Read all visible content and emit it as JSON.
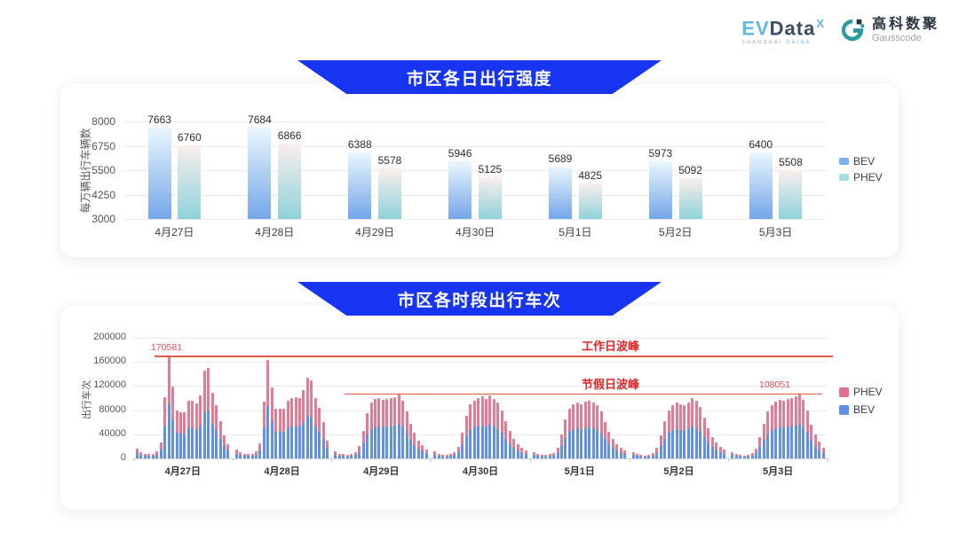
{
  "header": {
    "evdata_ev": "EV",
    "evdata_data": "Data",
    "evdata_sup": "X",
    "evdata_sub_left": "SHANGHAI ",
    "evdata_sub_right": "CHINA",
    "gausscode_cn": "高科数聚",
    "gausscode_en": "Gausscode"
  },
  "colors": {
    "banner_blue": "#1634f2",
    "grid": "#e8eaee",
    "peak_line_red": "#e4574e",
    "peak_text_red": "#e02626",
    "c1_bev_top": "#eaf7fd",
    "c1_bev_bottom": "#74a6e9",
    "c1_phev_top": "#f9efec",
    "c1_phev_bottom": "#8fd2da",
    "c2_bev": "#6290e4",
    "c2_phev": "#e27b94"
  },
  "chart_data": [
    {
      "type": "bar",
      "title": "市区各日出行强度",
      "xlabel": "",
      "ylabel": "每万辆出行车辆数",
      "ylim": [
        3000,
        8000
      ],
      "yticks": [
        8000,
        6750,
        5500,
        4250,
        3000
      ],
      "grid": true,
      "legend_position": "right",
      "categories": [
        "4月27日",
        "4月28日",
        "4月29日",
        "4月30日",
        "5月1日",
        "5月2日",
        "5月3日"
      ],
      "series": [
        {
          "name": "BEV",
          "color_top": "#eaf7fd",
          "color_bottom": "#74a6e9",
          "values": [
            7663,
            7684,
            6388,
            5946,
            5689,
            5973,
            6400
          ]
        },
        {
          "name": "PHEV",
          "color_top": "#f9efec",
          "color_bottom": "#8fd2da",
          "values": [
            6760,
            6866,
            5578,
            5125,
            4825,
            5092,
            5508
          ]
        }
      ],
      "legend": [
        {
          "label": "BEV",
          "color": "#7db2ec"
        },
        {
          "label": "PHEV",
          "color": "#a6dce3"
        }
      ]
    },
    {
      "type": "stacked-bar",
      "title": "市区各时段出行车次",
      "xlabel": "",
      "ylabel": "出行车次",
      "ylim": [
        0,
        200000
      ],
      "yticks": [
        200000,
        160000,
        120000,
        80000,
        40000,
        0
      ],
      "grid": true,
      "legend_position": "right",
      "hours_per_day": 24,
      "categories": [
        "4月27日",
        "4月28日",
        "4月29日",
        "4月30日",
        "5月1日",
        "5月2日",
        "5月3日"
      ],
      "series_colors": {
        "BEV": "#6290e4",
        "PHEV": "#e27b94"
      },
      "days": [
        {
          "date": "4月27日",
          "bev": [
            8500,
            5800,
            4200,
            3700,
            4200,
            6400,
            14300,
            53500,
            91000,
            63100,
            42400,
            40800,
            40300,
            50400,
            50600,
            48000,
            55100,
            77400,
            79800,
            57800,
            46600,
            32900,
            20100,
            12700
          ],
          "phev": [
            7500,
            5200,
            3800,
            3300,
            3800,
            5600,
            12700,
            47500,
            79581,
            55900,
            37600,
            36200,
            35700,
            44600,
            44900,
            42500,
            48900,
            68600,
            70700,
            51200,
            41400,
            29100,
            17900,
            11300
          ]
        },
        {
          "date": "4月28日",
          "bev": [
            8000,
            5300,
            4200,
            3700,
            4200,
            6400,
            13300,
            49800,
            86900,
            62000,
            43500,
            43500,
            44000,
            50400,
            53000,
            53500,
            53000,
            59900,
            71000,
            68400,
            53000,
            44500,
            31800,
            15900
          ],
          "phev": [
            7000,
            4700,
            3800,
            3300,
            3800,
            5600,
            11700,
            44200,
            77100,
            55000,
            38500,
            38500,
            39000,
            44600,
            47000,
            47500,
            47000,
            53100,
            63000,
            60600,
            47000,
            39500,
            28200,
            14100
          ]
        },
        {
          "date": "4月29日",
          "bev": [
            6400,
            4200,
            3700,
            3200,
            3700,
            5300,
            10600,
            24400,
            39800,
            48800,
            51900,
            53000,
            51400,
            52500,
            53000,
            54100,
            56700,
            50900,
            41300,
            30700,
            22300,
            15900,
            11700,
            8000
          ],
          "phev": [
            5600,
            3800,
            3300,
            2800,
            3300,
            4700,
            9400,
            21600,
            35200,
            43200,
            46100,
            47000,
            45600,
            46500,
            47000,
            47900,
            50300,
            45100,
            36700,
            27300,
            19700,
            14100,
            10300,
            7000
          ]
        },
        {
          "date": "4月30日",
          "bev": [
            6400,
            4200,
            3200,
            3200,
            3700,
            5300,
            10100,
            22300,
            37100,
            47700,
            50900,
            53000,
            54600,
            51900,
            55700,
            52500,
            48800,
            42400,
            32900,
            23900,
            17000,
            12700,
            9500,
            6900
          ],
          "phev": [
            5600,
            3800,
            2800,
            2800,
            3300,
            4700,
            8900,
            19700,
            32900,
            42300,
            45100,
            47000,
            48400,
            46100,
            49300,
            46500,
            43200,
            37600,
            29100,
            21100,
            15000,
            11300,
            8500,
            6100
          ]
        },
        {
          "date": "5月1日",
          "bev": [
            5800,
            4200,
            3200,
            3200,
            3700,
            4800,
            9500,
            21200,
            34500,
            44000,
            47700,
            49300,
            47700,
            49800,
            50900,
            49300,
            46600,
            41300,
            31800,
            23300,
            17000,
            12700,
            9500,
            6900
          ],
          "phev": [
            5200,
            3800,
            2800,
            2800,
            3300,
            4200,
            8500,
            18800,
            30500,
            39000,
            42300,
            43700,
            42300,
            44200,
            45100,
            43700,
            41400,
            36700,
            28200,
            20700,
            15000,
            11300,
            8500,
            6100
          ]
        },
        {
          "date": "5月2日",
          "bev": [
            5800,
            3700,
            3200,
            2700,
            3200,
            4800,
            9000,
            20100,
            32900,
            42400,
            46600,
            48800,
            47700,
            46600,
            48800,
            53000,
            50400,
            45100,
            36000,
            26500,
            19100,
            13800,
            10100,
            7400
          ],
          "phev": [
            5200,
            3300,
            2800,
            2300,
            2800,
            4200,
            8000,
            17900,
            29100,
            37600,
            41400,
            43200,
            42300,
            41400,
            43200,
            47000,
            44600,
            39900,
            32000,
            23500,
            16900,
            12200,
            8900,
            6600
          ]
        },
        {
          "date": "5月3日",
          "bev": [
            5300,
            3700,
            3200,
            2700,
            3200,
            4800,
            8500,
            19100,
            30700,
            41300,
            46600,
            49800,
            51400,
            50900,
            51900,
            53000,
            54600,
            57300,
            51400,
            42400,
            29700,
            21200,
            14800,
            9500
          ],
          "phev": [
            4700,
            3300,
            2800,
            2300,
            2800,
            4200,
            7500,
            16900,
            27300,
            36700,
            41400,
            44200,
            45600,
            45100,
            46100,
            47000,
            48400,
            50751,
            45600,
            37600,
            26300,
            18800,
            13200,
            8500
          ]
        }
      ],
      "annotations": {
        "workday_peak": {
          "label": "工作日波峰",
          "value": 170581
        },
        "holiday_peak": {
          "label": "节假日波峰",
          "value": 108051
        }
      },
      "legend": [
        {
          "label": "PHEV",
          "color": "#e0708b"
        },
        {
          "label": "BEV",
          "color": "#5f8ee8"
        }
      ]
    }
  ]
}
